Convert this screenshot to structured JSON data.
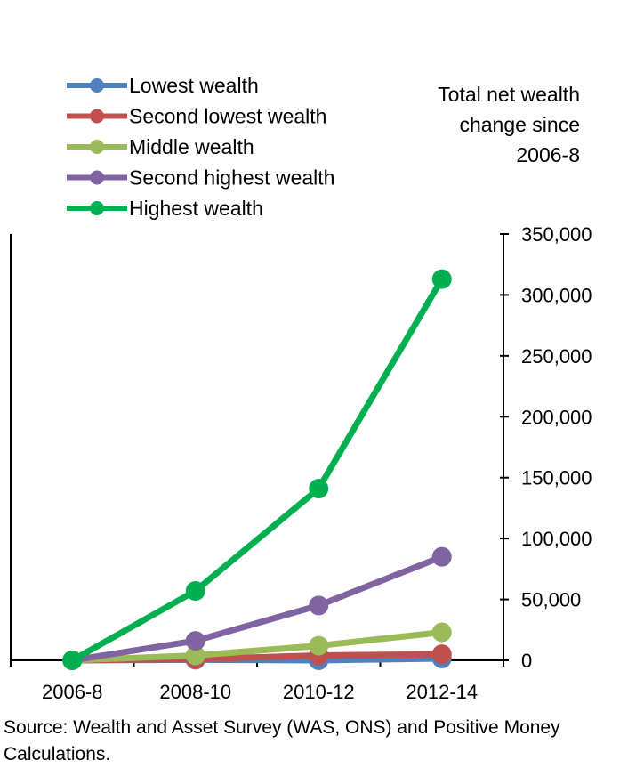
{
  "chart_data": {
    "type": "line",
    "categories": [
      "2006-8",
      "2008-10",
      "2010-12",
      "2012-14"
    ],
    "ylabel": [
      "Total net wealth",
      "change since",
      "2006-8"
    ],
    "ylim": [
      0,
      350000
    ],
    "yticks": [
      0,
      50000,
      100000,
      150000,
      200000,
      250000,
      300000,
      350000
    ],
    "ytick_labels": [
      "0",
      "50,000",
      "100,000",
      "150,000",
      "200,000",
      "250,000",
      "300,000",
      "350,000"
    ],
    "y_axis_side": "right",
    "legend_position": "top-left",
    "grid": false,
    "series": [
      {
        "name": "Lowest wealth",
        "color": "#4f81bd",
        "values": [
          0,
          500,
          0,
          1500
        ]
      },
      {
        "name": "Second lowest wealth",
        "color": "#c0504d",
        "values": [
          0,
          1000,
          4000,
          5000
        ]
      },
      {
        "name": "Middle wealth",
        "color": "#9bbb59",
        "values": [
          0,
          4000,
          12000,
          23000
        ]
      },
      {
        "name": "Second highest wealth",
        "color": "#8064a2",
        "values": [
          0,
          16000,
          45000,
          85000
        ]
      },
      {
        "name": "Highest wealth",
        "color": "#00b050",
        "values": [
          0,
          57000,
          141000,
          313000
        ]
      }
    ]
  },
  "source": "Source: Wealth and Asset Survey (WAS, ONS) and Positive Money Calculations."
}
